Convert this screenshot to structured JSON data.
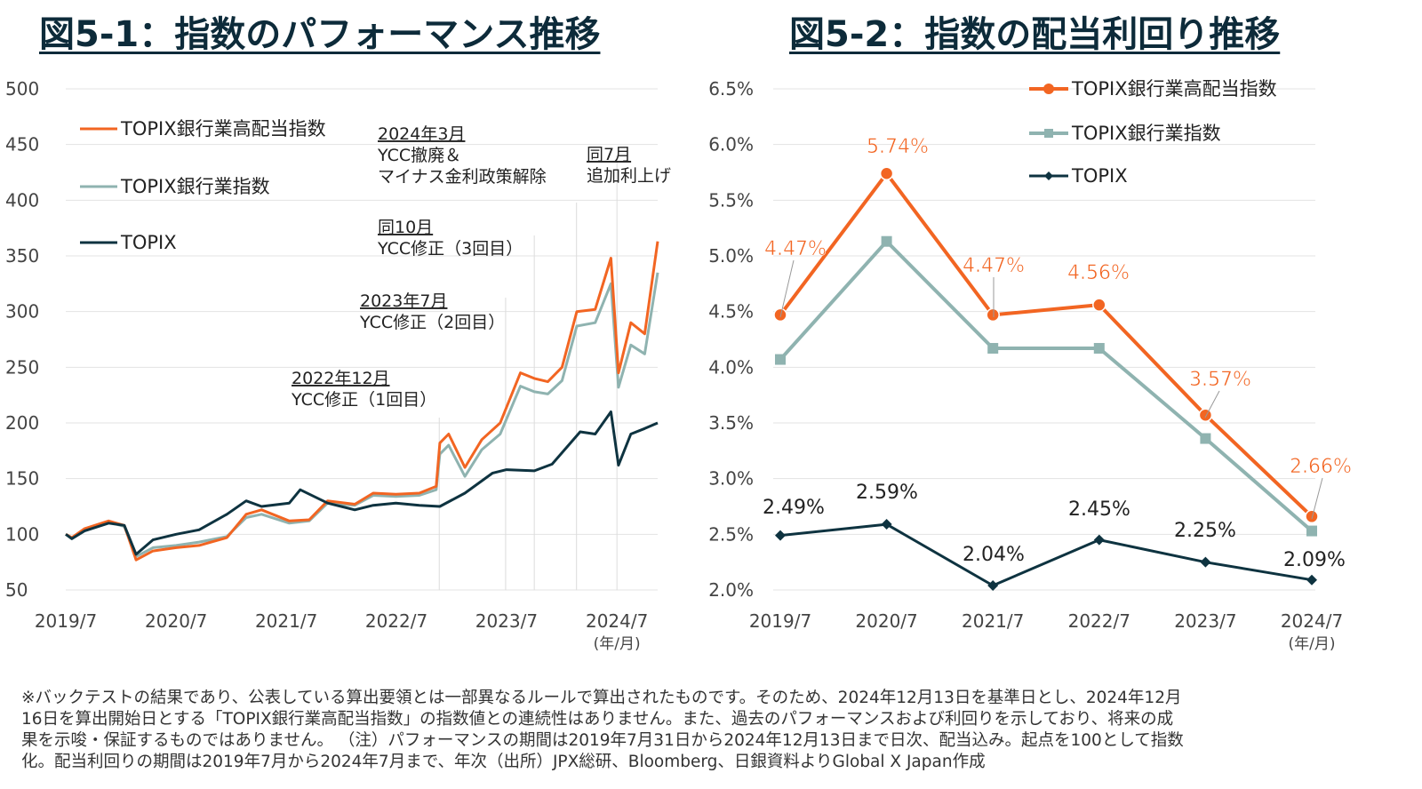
{
  "titles": {
    "left": "図5-1：指数のパフォーマンス推移",
    "right": "図5-2：指数の配当利回り推移"
  },
  "colors": {
    "high_dividend": "#f26522",
    "bank": "#8fb3b0",
    "topix": "#0e3340"
  },
  "chart_data": [
    {
      "type": "line",
      "title": "図5-1：指数のパフォーマンス推移",
      "x_ticks": [
        "2019/7",
        "2020/7",
        "2021/7",
        "2022/7",
        "2023/7",
        "2024/7"
      ],
      "x_unit": "(年/月)",
      "y_ticks": [
        50,
        100,
        150,
        200,
        250,
        300,
        350,
        400,
        450,
        500
      ],
      "ylim": [
        50,
        500
      ],
      "grid": "horizontal",
      "legend_position": "top-left",
      "series": [
        {
          "name": "TOPIX銀行業高配当指数",
          "color": "#f26522",
          "points": [
            [
              "2019-07-31",
              100
            ],
            [
              "2019-08-20",
              97
            ],
            [
              "2019-10-01",
              105
            ],
            [
              "2019-12-20",
              112
            ],
            [
              "2020-02-10",
              108
            ],
            [
              "2020-03-20",
              77
            ],
            [
              "2020-05-15",
              85
            ],
            [
              "2020-07-31",
              88
            ],
            [
              "2020-10-15",
              90
            ],
            [
              "2021-01-15",
              97
            ],
            [
              "2021-03-20",
              118
            ],
            [
              "2021-05-10",
              122
            ],
            [
              "2021-08-10",
              112
            ],
            [
              "2021-10-15",
              113
            ],
            [
              "2021-12-15",
              130
            ],
            [
              "2022-03-15",
              127
            ],
            [
              "2022-05-15",
              137
            ],
            [
              "2022-07-29",
              136
            ],
            [
              "2022-10-15",
              137
            ],
            [
              "2022-12-10",
              143
            ],
            [
              "2022-12-22",
              182
            ],
            [
              "2023-01-20",
              190
            ],
            [
              "2023-03-15",
              160
            ],
            [
              "2023-05-10",
              185
            ],
            [
              "2023-07-10",
              200
            ],
            [
              "2023-09-15",
              245
            ],
            [
              "2023-10-31",
              240
            ],
            [
              "2023-12-15",
              237
            ],
            [
              "2024-01-31",
              250
            ],
            [
              "2024-03-20",
              300
            ],
            [
              "2024-05-20",
              302
            ],
            [
              "2024-07-11",
              348
            ],
            [
              "2024-08-05",
              245
            ],
            [
              "2024-09-15",
              290
            ],
            [
              "2024-10-31",
              280
            ],
            [
              "2024-12-13",
              363
            ]
          ]
        },
        {
          "name": "TOPIX銀行業指数",
          "color": "#8fb3b0",
          "points": [
            [
              "2019-07-31",
              100
            ],
            [
              "2019-08-20",
              96
            ],
            [
              "2019-10-01",
              104
            ],
            [
              "2019-12-20",
              111
            ],
            [
              "2020-02-10",
              107
            ],
            [
              "2020-03-20",
              80
            ],
            [
              "2020-05-15",
              88
            ],
            [
              "2020-07-31",
              90
            ],
            [
              "2020-10-15",
              93
            ],
            [
              "2021-01-15",
              98
            ],
            [
              "2021-03-20",
              115
            ],
            [
              "2021-05-10",
              118
            ],
            [
              "2021-08-10",
              110
            ],
            [
              "2021-10-15",
              112
            ],
            [
              "2021-12-15",
              128
            ],
            [
              "2022-03-15",
              126
            ],
            [
              "2022-05-15",
              135
            ],
            [
              "2022-07-29",
              134
            ],
            [
              "2022-10-15",
              135
            ],
            [
              "2022-12-10",
              140
            ],
            [
              "2022-12-22",
              172
            ],
            [
              "2023-01-20",
              180
            ],
            [
              "2023-03-15",
              152
            ],
            [
              "2023-05-10",
              176
            ],
            [
              "2023-07-10",
              190
            ],
            [
              "2023-09-15",
              233
            ],
            [
              "2023-10-31",
              228
            ],
            [
              "2023-12-15",
              226
            ],
            [
              "2024-01-31",
              238
            ],
            [
              "2024-03-20",
              287
            ],
            [
              "2024-05-20",
              290
            ],
            [
              "2024-07-11",
              325
            ],
            [
              "2024-08-05",
              232
            ],
            [
              "2024-09-15",
              270
            ],
            [
              "2024-10-31",
              262
            ],
            [
              "2024-12-13",
              335
            ]
          ]
        },
        {
          "name": "TOPIX",
          "color": "#0e3340",
          "points": [
            [
              "2019-07-31",
              100
            ],
            [
              "2019-08-20",
              96
            ],
            [
              "2019-10-01",
              103
            ],
            [
              "2019-12-20",
              110
            ],
            [
              "2020-02-10",
              108
            ],
            [
              "2020-03-20",
              82
            ],
            [
              "2020-05-15",
              95
            ],
            [
              "2020-07-31",
              100
            ],
            [
              "2020-10-15",
              104
            ],
            [
              "2021-01-15",
              118
            ],
            [
              "2021-03-20",
              130
            ],
            [
              "2021-05-10",
              125
            ],
            [
              "2021-08-10",
              128
            ],
            [
              "2021-09-15",
              140
            ],
            [
              "2021-12-15",
              128
            ],
            [
              "2022-03-15",
              122
            ],
            [
              "2022-05-15",
              126
            ],
            [
              "2022-07-29",
              128
            ],
            [
              "2022-10-15",
              126
            ],
            [
              "2022-12-22",
              125
            ],
            [
              "2023-03-15",
              137
            ],
            [
              "2023-06-15",
              155
            ],
            [
              "2023-07-31",
              158
            ],
            [
              "2023-10-31",
              157
            ],
            [
              "2023-12-29",
              163
            ],
            [
              "2024-02-15",
              178
            ],
            [
              "2024-03-31",
              192
            ],
            [
              "2024-05-20",
              190
            ],
            [
              "2024-07-11",
              210
            ],
            [
              "2024-08-05",
              162
            ],
            [
              "2024-09-15",
              190
            ],
            [
              "2024-10-31",
              195
            ],
            [
              "2024-12-13",
              200
            ]
          ]
        }
      ],
      "annotations": [
        {
          "date": "2022-12-20",
          "line1": "2022年12月",
          "line2": "YCC修正（1回目）"
        },
        {
          "date": "2023-07-28",
          "line1": "2023年7月",
          "line2": "YCC修正（2回目）"
        },
        {
          "date": "2023-10-31",
          "line1": "同10月",
          "line2": "YCC修正（3回目）"
        },
        {
          "date": "2024-03-19",
          "line1": "2024年3月",
          "line2": "YCC撤廃＆",
          "line3": "マイナス金利政策解除"
        },
        {
          "date": "2024-07-31",
          "line1": "同7月",
          "line2": "追加利上げ"
        }
      ]
    },
    {
      "type": "line",
      "title": "図5-2：指数の配当利回り推移",
      "categories": [
        "2019/7",
        "2020/7",
        "2021/7",
        "2022/7",
        "2023/7",
        "2024/7"
      ],
      "x_unit": "(年/月)",
      "y_ticks": [
        "2.0%",
        "2.5%",
        "3.0%",
        "3.5%",
        "4.0%",
        "4.5%",
        "5.0%",
        "5.5%",
        "6.0%",
        "6.5%"
      ],
      "ylim": [
        2.0,
        6.5
      ],
      "grid": "horizontal",
      "legend_position": "top-right",
      "series": [
        {
          "name": "TOPIX銀行業高配当指数",
          "color": "#f26522",
          "marker": "circle",
          "values": [
            4.47,
            5.74,
            4.47,
            4.56,
            3.57,
            2.66
          ],
          "labels": [
            "4.47%",
            "5.74%",
            "4.47%",
            "4.56%",
            "3.57%",
            "2.66%"
          ]
        },
        {
          "name": "TOPIX銀行業指数",
          "color": "#8fb3b0",
          "marker": "square",
          "values": [
            4.07,
            5.13,
            4.17,
            4.17,
            3.36,
            2.53
          ]
        },
        {
          "name": "TOPIX",
          "color": "#0e3340",
          "marker": "diamond",
          "values": [
            2.49,
            2.59,
            2.04,
            2.45,
            2.25,
            2.09
          ],
          "labels": [
            "2.49%",
            "2.59%",
            "2.04%",
            "2.45%",
            "2.25%",
            "2.09%"
          ]
        }
      ]
    }
  ],
  "footnote": "※バックテストの結果であり、公表している算出要領とは一部異なるルールで算出されたものです。そのため、2024年12月13日を基準日とし、2024年12月\n16日を算出開始日とする「TOPIX銀行業高配当指数」の指数値との連続性はありません。また、過去のパフォーマンスおよび利回りを示しており、将来の成\n果を示唆・保証するものではありません。 （注）パフォーマンスの期間は2019年7月31日から2024年12月13日まで日次、配当込み。起点を100として指数\n化。配当利回りの期間は2019年7月から2024年7月まで、年次（出所）JPX総研、Bloomberg、日銀資料よりGlobal X Japan作成"
}
